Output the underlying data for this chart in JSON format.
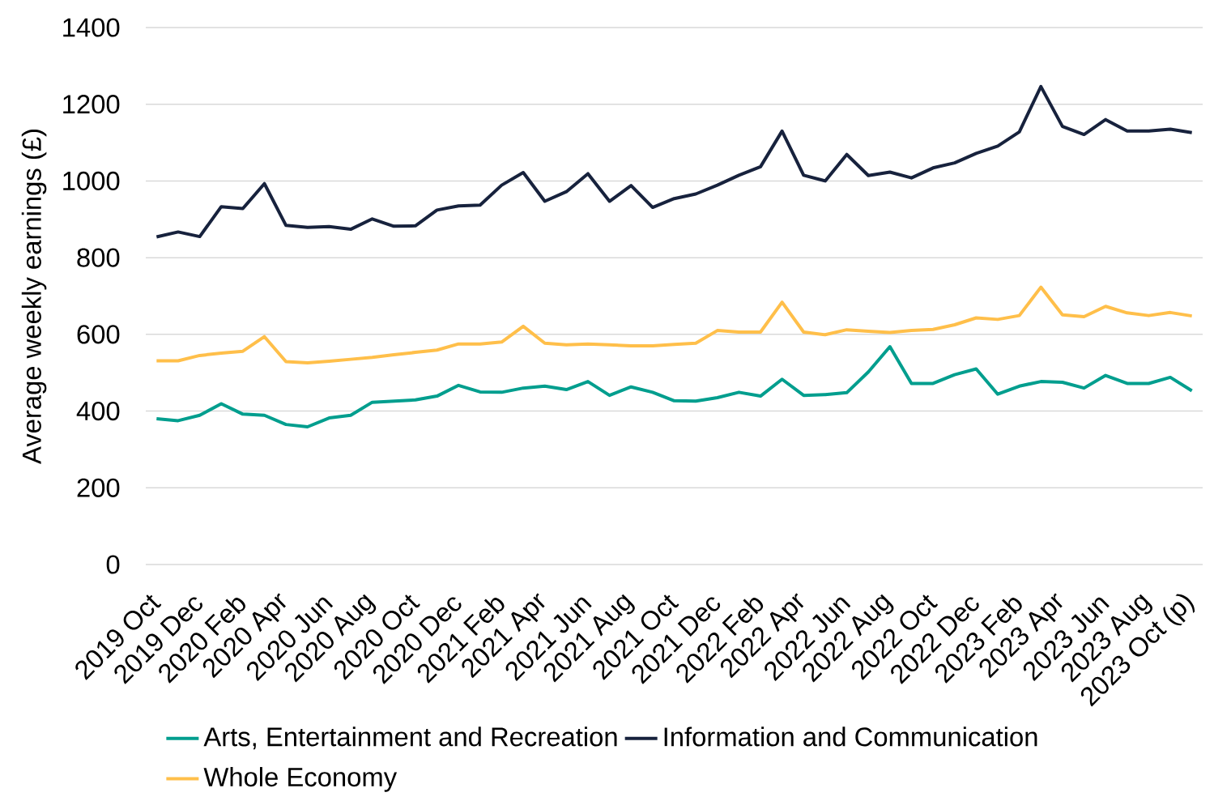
{
  "chart_data": {
    "type": "line",
    "ylabel": "Average weekly earnings (£)",
    "categories": [
      "2019 Oct",
      null,
      "2019 Dec",
      null,
      "2020 Feb",
      null,
      "2020 Apr",
      null,
      "2020 Jun",
      null,
      "2020 Aug",
      null,
      "2020 Oct",
      null,
      "2020 Dec",
      null,
      "2021 Feb",
      null,
      "2021 Apr",
      null,
      "2021 Jun",
      null,
      "2021 Aug",
      null,
      "2021 Oct",
      null,
      "2021 Dec",
      null,
      "2022 Feb",
      null,
      "2022 Apr",
      null,
      "2022 Jun",
      null,
      "2022 Aug",
      null,
      "2022 Oct",
      null,
      "2022 Dec",
      null,
      "2023 Feb",
      null,
      "2023 Apr",
      null,
      "2023 Jun",
      null,
      "2023 Aug",
      null,
      "2023 Oct (p)"
    ],
    "series": [
      {
        "name": "Arts, Entertainment and Recreation",
        "color": "#009e8e",
        "values": [
          380,
          375,
          389,
          419,
          392,
          389,
          365,
          359,
          382,
          389,
          423,
          426,
          429,
          439,
          467,
          450,
          449,
          460,
          465,
          456,
          477,
          441,
          463,
          449,
          427,
          426,
          435,
          449,
          439,
          483,
          441,
          443,
          448,
          502,
          568,
          472,
          472,
          495,
          510,
          444,
          465,
          477,
          475,
          460,
          493,
          472,
          472,
          488,
          453
        ]
      },
      {
        "name": "Information and Communication",
        "color": "#17223d",
        "values": [
          854,
          867,
          855,
          933,
          928,
          993,
          884,
          879,
          881,
          874,
          901,
          882,
          883,
          924,
          935,
          937,
          989,
          1022,
          947,
          972,
          1019,
          947,
          988,
          931,
          954,
          966,
          989,
          1015,
          1037,
          1130,
          1015,
          1000,
          1069,
          1014,
          1023,
          1008,
          1034,
          1047,
          1072,
          1091,
          1128,
          1246,
          1142,
          1121,
          1160,
          1130,
          1130,
          1135,
          1126
        ]
      },
      {
        "name": "Whole Economy",
        "color": "#ffbf4a",
        "values": [
          531,
          531,
          545,
          551,
          556,
          594,
          529,
          526,
          530,
          535,
          540,
          547,
          553,
          559,
          575,
          575,
          580,
          621,
          577,
          573,
          575,
          573,
          570,
          570,
          574,
          577,
          610,
          606,
          606,
          684,
          606,
          599,
          612,
          608,
          605,
          610,
          613,
          625,
          643,
          639,
          649,
          723,
          651,
          646,
          673,
          656,
          649,
          657,
          648
        ]
      }
    ],
    "ylim": [
      0,
      1400
    ],
    "yticks": [
      0,
      200,
      400,
      600,
      800,
      1000,
      1200,
      1400
    ],
    "grid": "y",
    "legend": "bottom",
    "marker": "none",
    "line_style": "solid"
  }
}
